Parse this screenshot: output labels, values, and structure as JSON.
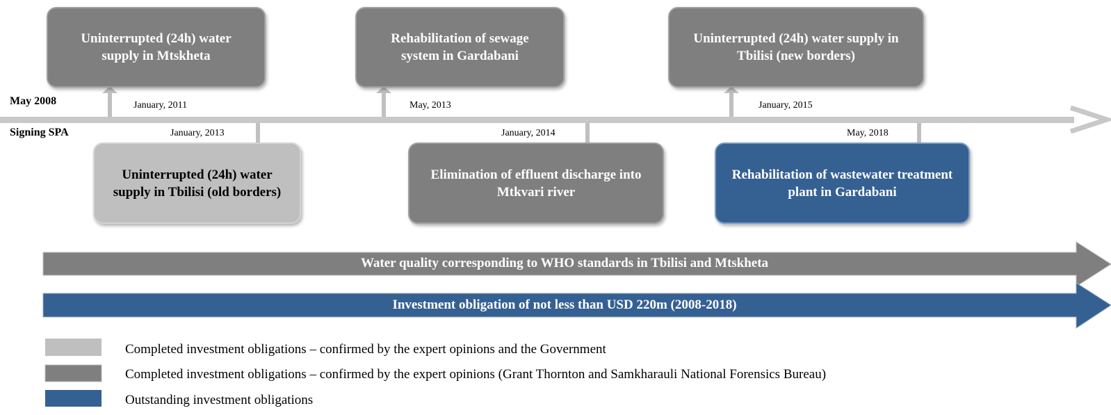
{
  "start": {
    "date": "May 2008",
    "label": "Signing SPA"
  },
  "top_events": [
    {
      "date": "January, 2011",
      "label": "Uninterrupted (24h) water supply in Mtskheta"
    },
    {
      "date": "May, 2013",
      "label": "Rehabilitation of sewage system in Gardabani"
    },
    {
      "date": "January, 2015",
      "label": "Uninterrupted (24h) water supply in Tbilisi (new borders)"
    }
  ],
  "bottom_events": [
    {
      "date": "January, 2013",
      "label": "Uninterrupted (24h) water supply in Tbilisi (old borders)"
    },
    {
      "date": "January, 2014",
      "label": "Elimination of effluent discharge into Mtkvari river"
    },
    {
      "date": "May, 2018",
      "label": "Rehabilitation of wastewater treatment plant in Gardabani"
    }
  ],
  "bars": [
    "Water quality corresponding to WHO standards in Tbilisi and Mtskheta",
    "Investment obligation of not less than USD 220m (2008-2018)"
  ],
  "legend": [
    "Completed investment obligations – confirmed by the expert opinions and the Government",
    "Completed investment obligations – confirmed by the expert opinions (Grant Thornton and Samkharauli National Forensics Bureau)",
    "Outstanding investment obligations"
  ]
}
